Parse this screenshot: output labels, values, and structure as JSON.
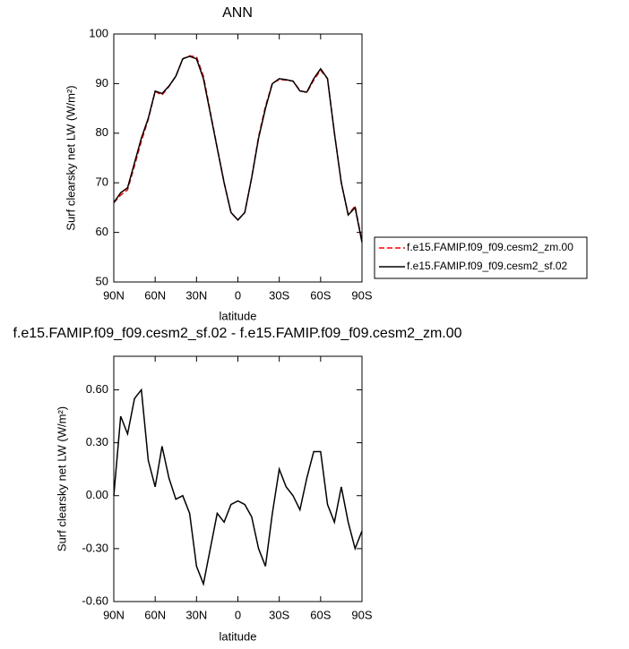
{
  "chart_data": [
    {
      "type": "line",
      "title": "ANN",
      "xlabel": "latitude",
      "ylabel": "Surf clearsky net LW (W/m²)",
      "x": [
        90,
        85,
        80,
        75,
        70,
        65,
        60,
        55,
        50,
        45,
        40,
        35,
        30,
        25,
        20,
        15,
        10,
        5,
        0,
        -5,
        -10,
        -15,
        -20,
        -25,
        -30,
        -35,
        -40,
        -45,
        -50,
        -55,
        -60,
        -65,
        -70,
        -75,
        -80,
        -85,
        -90
      ],
      "series": [
        {
          "name": "f.e15.FAMIP.f09_f09.cesm2_zm.00",
          "color": "#ff0000",
          "line_style": "dashed",
          "values": [
            66,
            67.5,
            68.6,
            73.4,
            78.4,
            82.8,
            88.4,
            87.7,
            89.4,
            91.5,
            95,
            95.6,
            95.4,
            91.5,
            84.3,
            77.1,
            70.1,
            64,
            62.5,
            64,
            71.1,
            79.3,
            85.4,
            90.1,
            90.8,
            90.7,
            90.5,
            88.6,
            88.2,
            90.7,
            92.7,
            91,
            80.1,
            70,
            63.6,
            65.3,
            58.2
          ]
        },
        {
          "name": "f.e15.FAMIP.f09_f09.cesm2_sf.02",
          "color": "#000000",
          "line_style": "solid",
          "values": [
            66,
            68,
            69,
            74,
            79,
            83,
            88.5,
            88,
            89.5,
            91.5,
            95,
            95.5,
            95,
            91,
            84,
            77,
            70,
            64,
            62.5,
            64,
            71,
            79,
            85,
            90,
            91,
            90.8,
            90.5,
            88.5,
            88.3,
            91,
            93,
            91,
            80,
            70,
            63.5,
            65,
            58
          ]
        }
      ],
      "xlim": [
        90,
        -90
      ],
      "xticks": [
        {
          "value": 90,
          "label": "90N"
        },
        {
          "value": 60,
          "label": "60N"
        },
        {
          "value": 30,
          "label": "30N"
        },
        0,
        {
          "value": -30,
          "label": "30S"
        },
        {
          "value": -60,
          "label": "60S"
        },
        {
          "value": -90,
          "label": "90S"
        }
      ],
      "ylim": [
        50,
        100
      ],
      "yticks": [
        50,
        60,
        70,
        80,
        90,
        100
      ],
      "legend": "outside-right"
    },
    {
      "type": "line",
      "title": "f.e15.FAMIP.f09_f09.cesm2_sf.02 - f.e15.FAMIP.f09_f09.cesm2_zm.00",
      "xlabel": "latitude",
      "ylabel": "Surf clearsky net LW (W/m²)",
      "x": [
        90,
        85,
        80,
        75,
        70,
        65,
        60,
        55,
        50,
        45,
        40,
        35,
        30,
        25,
        20,
        15,
        10,
        5,
        0,
        -5,
        -10,
        -15,
        -20,
        -25,
        -30,
        -35,
        -40,
        -45,
        -50,
        -55,
        -60,
        -65,
        -70,
        -75,
        -80,
        -85,
        -90
      ],
      "series": [
        {
          "color": "#000000",
          "line_style": "solid",
          "values": [
            0,
            0.45,
            0.35,
            0.55,
            0.6,
            0.2,
            0.05,
            0.28,
            0.1,
            -0.02,
            0,
            -0.1,
            -0.4,
            -0.5,
            -0.3,
            -0.1,
            -0.15,
            -0.05,
            -0.03,
            -0.05,
            -0.12,
            -0.3,
            -0.4,
            -0.1,
            0.15,
            0.05,
            0,
            -0.08,
            0.1,
            0.25,
            0.25,
            -0.05,
            -0.15,
            0.05,
            -0.15,
            -0.3,
            -0.2
          ]
        }
      ],
      "xlim": [
        90,
        -90
      ],
      "xticks": [
        {
          "value": 90,
          "label": "90N"
        },
        {
          "value": 60,
          "label": "60N"
        },
        {
          "value": 30,
          "label": "30N"
        },
        0,
        {
          "value": -30,
          "label": "30S"
        },
        {
          "value": -60,
          "label": "60S"
        },
        {
          "value": -90,
          "label": "90S"
        }
      ],
      "ylim": [
        -0.6,
        0.79
      ],
      "yticks": [
        {
          "value": -0.6,
          "label": "-0.60"
        },
        {
          "value": -0.3,
          "label": "-0.30"
        },
        {
          "value": 0,
          "label": "0.00"
        },
        {
          "value": 0.3,
          "label": "0.30"
        },
        {
          "value": 0.6,
          "label": "0.60"
        }
      ]
    }
  ]
}
